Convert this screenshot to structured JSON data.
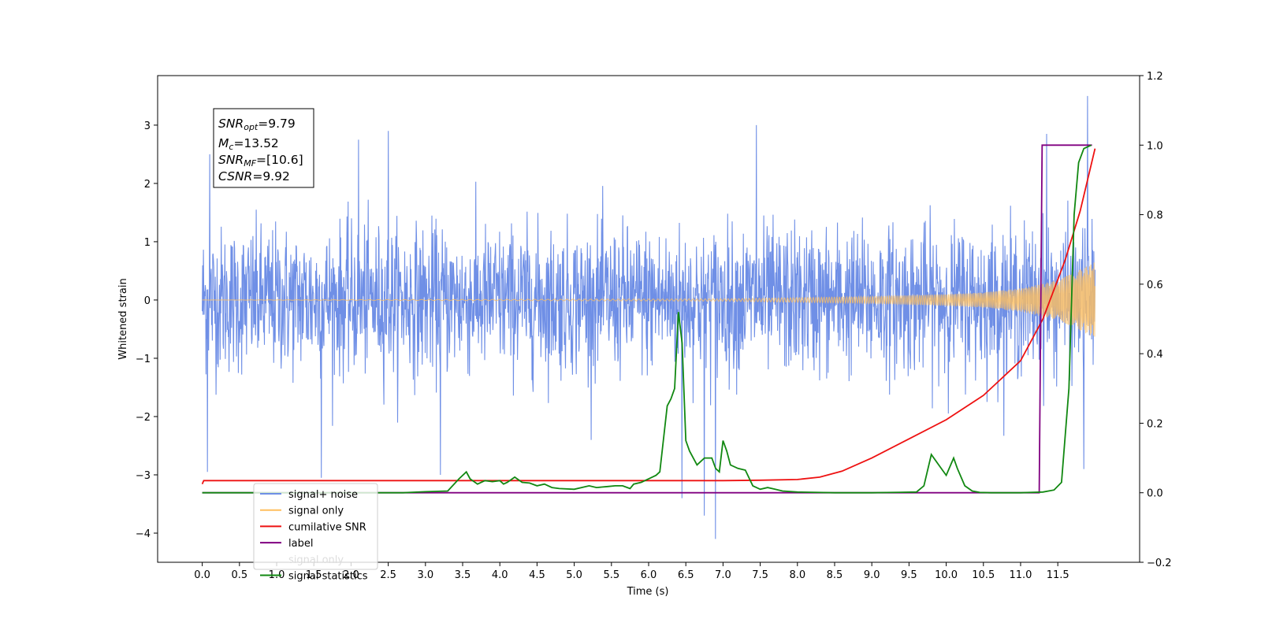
{
  "chart_data": {
    "type": "line",
    "title": "",
    "xlabel": "Time (s)",
    "ylabel": "Whitened strain",
    "y2label": "",
    "xlim": [
      -0.6,
      12.6
    ],
    "ylim": [
      -4.5,
      3.85
    ],
    "y2lim": [
      -0.2,
      1.2
    ],
    "x_ticks": [
      "0.0",
      "0.5",
      "1.0",
      "1.5",
      "2.0",
      "2.5",
      "3.0",
      "3.5",
      "4.0",
      "4.5",
      "5.0",
      "5.5",
      "6.0",
      "6.5",
      "7.0",
      "7.5",
      "8.0",
      "8.5",
      "9.0",
      "9.5",
      "10.0",
      "10.5",
      "11.0",
      "11.5"
    ],
    "y_ticks": [
      "−4",
      "−3",
      "−2",
      "−1",
      "0",
      "1",
      "2",
      "3"
    ],
    "y2_ticks": [
      "−0.2",
      "0.0",
      "0.2",
      "0.4",
      "0.6",
      "0.8",
      "1.0",
      "1.2"
    ],
    "grid": false,
    "legend_placement": "lower-left",
    "annotation": {
      "snr_opt_name": "SNR",
      "snr_opt_sub": "opt",
      "snr_opt_value": "=9.79",
      "mc_name": "M",
      "mc_sub": "c",
      "mc_value": "=13.52",
      "snr_mf_name": "SNR",
      "snr_mf_sub": "MF",
      "snr_mf_value": "=[10.6]",
      "csnr_name": "CSNR",
      "csnr_value": "=9.92"
    },
    "series": [
      {
        "name": "signal+ noise",
        "axis": "left",
        "color": "#6f8fe6",
        "noise_sigma": 0.62,
        "duration": 12.0,
        "spikes": [
          [
            0.07,
            -2.95
          ],
          [
            0.1,
            2.5
          ],
          [
            1.6,
            -3.05
          ],
          [
            2.1,
            2.75
          ],
          [
            2.5,
            2.9
          ],
          [
            3.2,
            -3.0
          ],
          [
            6.45,
            -3.4
          ],
          [
            6.75,
            -3.7
          ],
          [
            6.9,
            -4.1
          ],
          [
            7.45,
            3.0
          ],
          [
            11.35,
            2.85
          ],
          [
            11.9,
            3.5
          ],
          [
            11.85,
            -2.9
          ]
        ]
      },
      {
        "name": "signal only",
        "axis": "left",
        "color": "#ffbf5f",
        "chirp_envelope": [
          [
            0.0,
            0.0
          ],
          [
            7.0,
            0.02
          ],
          [
            9.0,
            0.06
          ],
          [
            10.0,
            0.1
          ],
          [
            10.5,
            0.13
          ],
          [
            11.0,
            0.2
          ],
          [
            11.5,
            0.34
          ],
          [
            12.0,
            0.65
          ]
        ]
      },
      {
        "name": "cumilative SNR",
        "axis": "right",
        "color": "#ee1111",
        "x": [
          0.0,
          0.02,
          0.05,
          1.0,
          3.0,
          6.0,
          7.0,
          7.5,
          8.0,
          8.3,
          8.6,
          9.0,
          9.5,
          10.0,
          10.5,
          11.0,
          11.3,
          11.6,
          11.8,
          12.0
        ],
        "y": [
          0.025,
          0.035,
          0.035,
          0.035,
          0.035,
          0.035,
          0.035,
          0.036,
          0.038,
          0.045,
          0.062,
          0.1,
          0.155,
          0.21,
          0.28,
          0.38,
          0.5,
          0.67,
          0.81,
          0.99
        ]
      },
      {
        "name": "label",
        "axis": "right",
        "color": "#800080",
        "x": [
          0.0,
          11.25,
          11.29,
          11.96,
          11.96
        ],
        "y": [
          0.0,
          0.0,
          1.0,
          1.0,
          1.0
        ]
      },
      {
        "name": "signal statistics",
        "axis": "right",
        "color": "#118811",
        "x": [
          0.0,
          2.7,
          3.0,
          3.3,
          3.45,
          3.55,
          3.6,
          3.7,
          3.8,
          3.9,
          4.0,
          4.05,
          4.1,
          4.2,
          4.3,
          4.4,
          4.5,
          4.6,
          4.7,
          4.8,
          5.0,
          5.2,
          5.3,
          5.45,
          5.55,
          5.65,
          5.75,
          5.8,
          5.9,
          6.0,
          6.1,
          6.15,
          6.25,
          6.3,
          6.35,
          6.4,
          6.45,
          6.5,
          6.55,
          6.65,
          6.75,
          6.85,
          6.9,
          6.95,
          7.0,
          7.05,
          7.1,
          7.2,
          7.3,
          7.4,
          7.5,
          7.6,
          7.7,
          7.8,
          8.0,
          8.5,
          9.0,
          9.6,
          9.7,
          9.8,
          9.9,
          10.0,
          10.1,
          10.15,
          10.25,
          10.35,
          10.45,
          10.6,
          11.0,
          11.3,
          11.45,
          11.55,
          11.65,
          11.72,
          11.78,
          11.85,
          11.95
        ],
        "y": [
          0.0,
          0.0,
          0.003,
          0.005,
          0.04,
          0.06,
          0.04,
          0.025,
          0.035,
          0.032,
          0.035,
          0.025,
          0.03,
          0.045,
          0.03,
          0.028,
          0.02,
          0.025,
          0.015,
          0.012,
          0.01,
          0.02,
          0.015,
          0.018,
          0.02,
          0.02,
          0.012,
          0.025,
          0.03,
          0.04,
          0.05,
          0.06,
          0.25,
          0.27,
          0.3,
          0.52,
          0.43,
          0.15,
          0.12,
          0.08,
          0.1,
          0.1,
          0.07,
          0.06,
          0.15,
          0.12,
          0.08,
          0.07,
          0.065,
          0.02,
          0.01,
          0.015,
          0.01,
          0.005,
          0.002,
          0.0,
          0.0,
          0.002,
          0.02,
          0.11,
          0.08,
          0.05,
          0.1,
          0.07,
          0.02,
          0.005,
          0.001,
          0.0,
          0.0,
          0.002,
          0.008,
          0.03,
          0.3,
          0.8,
          0.95,
          0.99,
          1.0
        ]
      },
      {
        "name": "signal only",
        "axis": "right",
        "color": "#dddddd",
        "legend_only": true
      }
    ]
  }
}
